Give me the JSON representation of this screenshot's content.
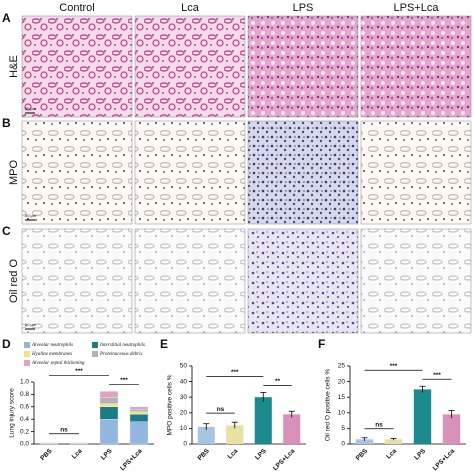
{
  "figure": {
    "panel_labels": [
      "A",
      "B",
      "C",
      "D",
      "E",
      "F"
    ],
    "columns": [
      "Control",
      "Lca",
      "LPS",
      "LPS+Lca"
    ],
    "rows": [
      "H&E",
      "MPO",
      "Oil red O"
    ],
    "scale_bar": "50 μm"
  },
  "chart_data": [
    {
      "type": "stacked_bar",
      "y_label": "Lung injury score",
      "categories": [
        "PBS",
        "Lca",
        "LPS",
        "LPS+Lca"
      ],
      "series": [
        {
          "name": "Alveolar neutrophils",
          "color": "#93b6e0",
          "values": [
            0.01,
            0.01,
            0.4,
            0.36
          ]
        },
        {
          "name": "Interstitial neutrophils",
          "color": "#1b7d83",
          "values": [
            0,
            0,
            0.2,
            0.12
          ]
        },
        {
          "name": "Hyaline membranes",
          "color": "#efe08e",
          "values": [
            0,
            0,
            0.05,
            0.04
          ]
        },
        {
          "name": "Proteinaceous debris",
          "color": "#b3b3b3",
          "values": [
            0,
            0,
            0.1,
            0.04
          ]
        },
        {
          "name": "Alveolar septal thickening",
          "color": "#e2a2c2",
          "values": [
            0.01,
            0.01,
            0.1,
            0.04
          ]
        }
      ],
      "ylim": [
        0,
        1.0
      ],
      "yticks": [
        {
          "value": 0,
          "label": "0.0"
        },
        0.2,
        0.4,
        0.6,
        0.8,
        {
          "value": 1.0,
          "label": "1.0"
        }
      ],
      "annotations": [
        "ns",
        "***",
        "***"
      ]
    },
    {
      "type": "bar",
      "y_label": "MPO positive cells %",
      "categories": [
        "PBS",
        "Lca",
        "LPS",
        "LPS+Lca"
      ],
      "values": [
        11,
        12,
        30,
        19
      ],
      "errors": [
        2,
        2,
        3,
        2
      ],
      "colors": [
        "#a9c4e2",
        "#e9e1a3",
        "#1a8a8e",
        "#d991b9"
      ],
      "ylim": [
        0,
        50
      ],
      "yticks": [
        0,
        10,
        20,
        30,
        40,
        50
      ],
      "annotations": [
        "ns",
        "***",
        "**"
      ]
    },
    {
      "type": "bar",
      "y_label": "Oil red O positive cells %",
      "categories": [
        "PBS",
        "Lca",
        "LPS",
        "LPS+Lca"
      ],
      "values": [
        1.5,
        1.5,
        17.5,
        9.5
      ],
      "errors": [
        0.5,
        0.3,
        1,
        1.2
      ],
      "colors": [
        "#a9c4e2",
        "#e9e1a3",
        "#1a8a8e",
        "#d991b9"
      ],
      "ylim": [
        0,
        25
      ],
      "yticks": [
        0,
        5,
        10,
        15,
        20,
        25
      ],
      "annotations": [
        "ns",
        "***",
        "***"
      ]
    }
  ]
}
